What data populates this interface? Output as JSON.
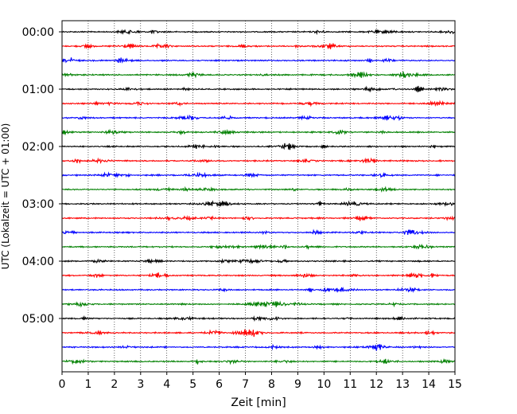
{
  "chart_data": {
    "type": "line",
    "xlabel": "Zeit  [min]",
    "ylabel": "UTC (Lokalzeit = UTC + 01:00)",
    "xlim": [
      0,
      15
    ],
    "x_ticks": [
      "0",
      "1",
      "2",
      "3",
      "4",
      "5",
      "6",
      "7",
      "8",
      "9",
      "10",
      "11",
      "12",
      "13",
      "14",
      "15"
    ],
    "y_ticks": [
      "00:00",
      "01:00",
      "02:00",
      "03:00",
      "04:00",
      "05:00"
    ],
    "grid": "vertical-dotted",
    "trace_interval_min": 15,
    "trace_colors": [
      "#000000",
      "#ff0000",
      "#0000ff",
      "#008000"
    ],
    "trace_count": 24,
    "trace_start_times": [
      "00:00",
      "00:15",
      "00:30",
      "00:45",
      "01:00",
      "01:15",
      "01:30",
      "01:45",
      "02:00",
      "02:15",
      "02:30",
      "02:45",
      "03:00",
      "03:15",
      "03:30",
      "03:45",
      "04:00",
      "04:15",
      "04:30",
      "04:45",
      "05:00",
      "05:15",
      "05:30",
      "05:45"
    ]
  }
}
